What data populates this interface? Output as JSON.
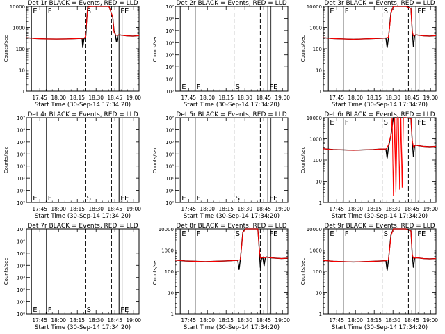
{
  "figure": {
    "xlabel": "Start Time (30-Sep-14 17:34:20)",
    "ylabel": "Counts/sec",
    "x_tick_labels": [
      "17:45",
      "18:00",
      "18:15",
      "18:30",
      "18:45",
      "19:00"
    ],
    "x_tick_minutes": [
      10.67,
      25.67,
      40.67,
      55.67,
      70.67,
      85.67
    ],
    "xlim_minutes": [
      0,
      90
    ],
    "colors": {
      "events": "#000000",
      "lld": "#ff0000",
      "background": "#ffffff"
    }
  },
  "chart_data": [
    {
      "type": "line",
      "title": "Det 1r BLACK = Events, RED = LLD",
      "scale": "log",
      "ylim": [
        1,
        10000
      ],
      "y_tick_labels": [
        "1",
        "10",
        "100",
        "1000",
        "10000"
      ],
      "x_tick_labels": [
        "17:45",
        "18:00",
        "18:15",
        "18:30",
        "18:45",
        "19:00"
      ],
      "markers": [
        {
          "x": 4,
          "label": "E"
        },
        {
          "x": 16,
          "label": "F"
        },
        {
          "x": 47,
          "label": "S"
        },
        {
          "x": 74,
          "label": "FE"
        }
      ],
      "series": [
        {
          "name": "Events",
          "x": [
            0,
            8,
            16,
            24,
            32,
            40,
            44.5,
            45,
            46,
            47,
            47.5,
            48,
            49,
            52,
            55,
            60,
            66,
            69,
            70,
            71,
            72,
            73,
            74,
            76,
            80,
            85,
            90
          ],
          "y": [
            330,
            300,
            290,
            285,
            290,
            300,
            310,
            110,
            300,
            320,
            400,
            1600,
            10000,
            10000,
            10000,
            10000,
            10000,
            3000,
            700,
            480,
            200,
            420,
            450,
            430,
            400,
            390,
            410
          ]
        },
        {
          "name": "LLD",
          "x": [
            0,
            8,
            16,
            24,
            32,
            40,
            46,
            47,
            48,
            49,
            52,
            55,
            60,
            66,
            69,
            70,
            71,
            72,
            74,
            76,
            80,
            85,
            90
          ],
          "y": [
            330,
            300,
            290,
            285,
            290,
            300,
            310,
            360,
            1500,
            9000,
            10000,
            10000,
            10000,
            10000,
            3000,
            600,
            460,
            420,
            450,
            430,
            400,
            390,
            410
          ]
        }
      ]
    },
    {
      "type": "line",
      "title": "Det 2r BLACK = Events, RED = LLD",
      "scale": "log",
      "ylim": [
        1,
        10000000
      ],
      "y_tick_labels": [
        "10⁰",
        "10¹",
        "10²",
        "10³",
        "10⁴",
        "10⁵",
        "10⁶",
        "10⁷"
      ],
      "x_tick_labels": [
        "17:45",
        "18:00",
        "18:15",
        "18:30",
        "18:45",
        "19:00"
      ],
      "markers": [
        {
          "x": 4,
          "label": "E"
        },
        {
          "x": 16,
          "label": "F"
        },
        {
          "x": 47,
          "label": "S"
        },
        {
          "x": 74,
          "label": "FE"
        }
      ],
      "series": []
    },
    {
      "type": "line",
      "title": "Det 3r BLACK = Events, RED = LLD",
      "scale": "log",
      "ylim": [
        1,
        10000
      ],
      "y_tick_labels": [
        "1",
        "10",
        "100",
        "1000",
        "10000"
      ],
      "x_tick_labels": [
        "17:45",
        "18:00",
        "18:15",
        "18:30",
        "18:45",
        "19:00"
      ],
      "markers": [
        {
          "x": 4,
          "label": "E"
        },
        {
          "x": 16,
          "label": "F"
        },
        {
          "x": 47,
          "label": "S"
        },
        {
          "x": 74,
          "label": "FE"
        }
      ],
      "series": [
        {
          "name": "Events",
          "x": [
            0,
            8,
            16,
            24,
            32,
            40,
            46,
            50,
            51,
            52,
            53,
            54,
            56,
            60,
            66,
            70,
            71,
            72,
            73,
            74,
            76,
            80,
            85,
            90
          ],
          "y": [
            330,
            300,
            290,
            280,
            290,
            300,
            310,
            320,
            110,
            300,
            1200,
            5000,
            10000,
            10000,
            10000,
            8000,
            800,
            120,
            420,
            450,
            430,
            400,
            390,
            410
          ]
        },
        {
          "name": "LLD",
          "x": [
            0,
            8,
            16,
            24,
            32,
            40,
            46,
            50,
            52,
            53,
            54,
            56,
            60,
            66,
            70,
            71,
            72,
            74,
            76,
            80,
            85,
            90
          ],
          "y": [
            330,
            300,
            290,
            280,
            290,
            300,
            310,
            320,
            350,
            1000,
            4500,
            10000,
            10000,
            10000,
            8000,
            700,
            400,
            450,
            430,
            400,
            390,
            410
          ]
        }
      ]
    },
    {
      "type": "line",
      "title": "Det 4r BLACK = Events, RED = LLD",
      "scale": "log",
      "ylim": [
        1,
        10000000
      ],
      "y_tick_labels": [
        "10⁰",
        "10¹",
        "10²",
        "10³",
        "10⁴",
        "10⁵",
        "10⁶",
        "10⁷"
      ],
      "x_tick_labels": [
        "17:45",
        "18:00",
        "18:15",
        "18:30",
        "18:45",
        "19:00"
      ],
      "markers": [
        {
          "x": 4,
          "label": "E"
        },
        {
          "x": 16,
          "label": "F"
        },
        {
          "x": 47,
          "label": "S"
        },
        {
          "x": 74,
          "label": "FE"
        }
      ],
      "series": []
    },
    {
      "type": "line",
      "title": "Det 5r BLACK = Events, RED = LLD",
      "scale": "log",
      "ylim": [
        1,
        10000000
      ],
      "y_tick_labels": [
        "10⁰",
        "10¹",
        "10²",
        "10³",
        "10⁴",
        "10⁵",
        "10⁶",
        "10⁷"
      ],
      "x_tick_labels": [
        "17:45",
        "18:00",
        "18:15",
        "18:30",
        "18:45",
        "19:00"
      ],
      "markers": [
        {
          "x": 4,
          "label": "E"
        },
        {
          "x": 16,
          "label": "F"
        },
        {
          "x": 47,
          "label": "S"
        },
        {
          "x": 74,
          "label": "FE"
        }
      ],
      "series": []
    },
    {
      "type": "line",
      "title": "Det 6r BLACK = Events, RED = LLD",
      "scale": "log",
      "ylim": [
        1,
        10000
      ],
      "y_tick_labels": [
        "1",
        "10",
        "100",
        "1000",
        "10000"
      ],
      "x_tick_labels": [
        "17:45",
        "18:00",
        "18:15",
        "18:30",
        "18:45",
        "19:00"
      ],
      "markers": [
        {
          "x": 4,
          "label": "E"
        },
        {
          "x": 16,
          "label": "F"
        },
        {
          "x": 47,
          "label": "S"
        },
        {
          "x": 74,
          "label": "FE"
        }
      ],
      "series": [
        {
          "name": "Events",
          "x": [
            0,
            8,
            16,
            24,
            32,
            40,
            46,
            50,
            51,
            52,
            54,
            56,
            60,
            66,
            70,
            71,
            72,
            73,
            74,
            76,
            80,
            85,
            90
          ],
          "y": [
            340,
            310,
            300,
            290,
            300,
            310,
            330,
            330,
            120,
            380,
            1500,
            10000,
            10000,
            10000,
            9000,
            900,
            140,
            480,
            500,
            470,
            440,
            420,
            440
          ]
        },
        {
          "name": "LLD",
          "x": [
            0,
            8,
            16,
            24,
            32,
            40,
            46,
            50,
            52,
            54,
            55,
            56,
            57,
            58,
            59,
            60,
            61,
            62,
            63,
            64,
            65,
            66,
            70,
            71,
            72,
            74,
            76,
            80,
            85,
            90
          ],
          "y": [
            340,
            310,
            300,
            290,
            300,
            310,
            330,
            330,
            500,
            1500,
            10000,
            2,
            10000,
            3,
            10000,
            10000,
            4,
            10000,
            5,
            10000,
            10000,
            10000,
            9000,
            900,
            420,
            500,
            470,
            440,
            420,
            440
          ]
        }
      ]
    },
    {
      "type": "line",
      "title": "Det 7r BLACK = Events, RED = LLD",
      "scale": "log",
      "ylim": [
        1,
        10000000
      ],
      "y_tick_labels": [
        "10⁰",
        "10¹",
        "10²",
        "10³",
        "10⁴",
        "10⁵",
        "10⁶",
        "10⁷"
      ],
      "x_tick_labels": [
        "17:45",
        "18:00",
        "18:15",
        "18:30",
        "18:45",
        "19:00"
      ],
      "markers": [
        {
          "x": 4,
          "label": "E"
        },
        {
          "x": 16,
          "label": "F"
        },
        {
          "x": 47,
          "label": "S"
        },
        {
          "x": 74,
          "label": "FE"
        }
      ],
      "series": []
    },
    {
      "type": "line",
      "title": "Det 8r BLACK = Events, RED = LLD",
      "scale": "log",
      "ylim": [
        1,
        10000
      ],
      "y_tick_labels": [
        "1",
        "10",
        "100",
        "1000",
        "10000"
      ],
      "x_tick_labels": [
        "17:45",
        "18:00",
        "18:15",
        "18:30",
        "18:45",
        "19:00"
      ],
      "markers": [
        {
          "x": 4,
          "label": "E"
        },
        {
          "x": 16,
          "label": "F"
        },
        {
          "x": 47,
          "label": "S"
        },
        {
          "x": 74,
          "label": "FE"
        }
      ],
      "series": [
        {
          "name": "Events",
          "x": [
            0,
            8,
            16,
            24,
            32,
            40,
            45,
            48,
            50,
            51,
            52,
            53,
            54,
            56,
            60,
            64,
            66,
            67,
            68,
            69,
            70,
            71,
            72,
            73,
            74,
            76,
            80,
            85,
            90
          ],
          "y": [
            340,
            310,
            300,
            290,
            300,
            310,
            320,
            330,
            330,
            120,
            350,
            1500,
            7000,
            10000,
            10000,
            10000,
            10000,
            1500,
            150,
            400,
            460,
            180,
            450,
            480,
            460,
            440,
            420,
            400,
            420
          ]
        },
        {
          "name": "LLD",
          "x": [
            0,
            8,
            16,
            24,
            32,
            40,
            45,
            48,
            50,
            52,
            53,
            54,
            56,
            60,
            64,
            66,
            67,
            68,
            70,
            72,
            74,
            76,
            80,
            85,
            90
          ],
          "y": [
            340,
            310,
            300,
            290,
            300,
            310,
            320,
            330,
            330,
            360,
            1400,
            6500,
            10000,
            10000,
            10000,
            10000,
            1500,
            420,
            450,
            440,
            470,
            440,
            420,
            400,
            420
          ]
        }
      ]
    },
    {
      "type": "line",
      "title": "Det 9r BLACK = Events, RED = LLD",
      "scale": "log",
      "ylim": [
        1,
        10000
      ],
      "y_tick_labels": [
        "1",
        "10",
        "100",
        "1000",
        "10000"
      ],
      "x_tick_labels": [
        "17:45",
        "18:00",
        "18:15",
        "18:30",
        "18:45",
        "19:00"
      ],
      "markers": [
        {
          "x": 4,
          "label": "E"
        },
        {
          "x": 16,
          "label": "F"
        },
        {
          "x": 47,
          "label": "S"
        },
        {
          "x": 74,
          "label": "FE"
        }
      ],
      "series": [
        {
          "name": "Events",
          "x": [
            0,
            8,
            16,
            24,
            32,
            40,
            46,
            50,
            51,
            52,
            53,
            54,
            56,
            60,
            66,
            70,
            71,
            72,
            73,
            74,
            76,
            80,
            85,
            90
          ],
          "y": [
            330,
            300,
            290,
            280,
            290,
            300,
            310,
            320,
            110,
            320,
            1300,
            5000,
            10000,
            10000,
            10000,
            8000,
            700,
            150,
            420,
            440,
            430,
            400,
            390,
            400
          ]
        },
        {
          "name": "LLD",
          "x": [
            0,
            8,
            16,
            24,
            32,
            40,
            46,
            50,
            52,
            53,
            54,
            56,
            60,
            66,
            70,
            71,
            72,
            74,
            76,
            80,
            85,
            90
          ],
          "y": [
            330,
            300,
            290,
            280,
            290,
            300,
            310,
            320,
            350,
            1100,
            4500,
            10000,
            10000,
            10000,
            8000,
            650,
            420,
            440,
            430,
            400,
            390,
            400
          ]
        }
      ]
    }
  ]
}
